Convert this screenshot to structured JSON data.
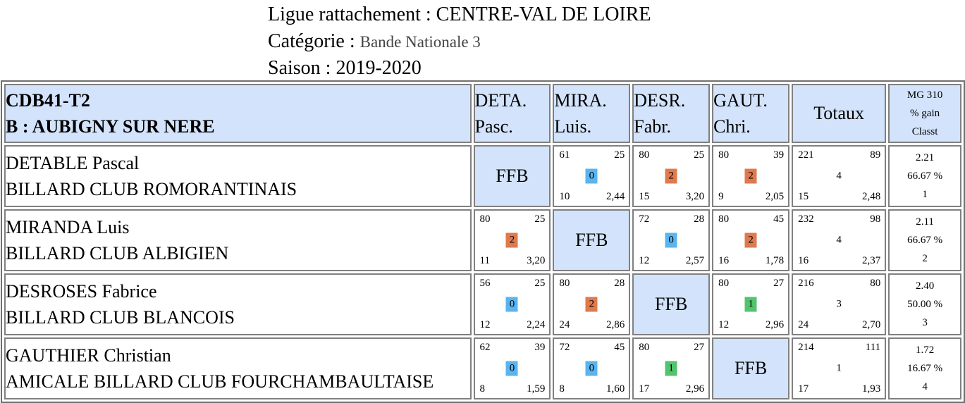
{
  "header": {
    "ligue_label": "Ligue rattachement : ",
    "ligue_value": "CENTRE-VAL DE LOIRE",
    "categorie_label": "Catégorie : ",
    "categorie_value": "Bande Nationale 3",
    "saison_label": "Saison : ",
    "saison_value": "2019-2020"
  },
  "colors": {
    "header_bg": "#d2e3fb",
    "badge_0": "#5ab4ee",
    "badge_1": "#52c46e",
    "badge_2": "#de7a4e",
    "border": "#808080"
  },
  "table": {
    "team_code": "CDB41-T2",
    "team_name": "B : AUBIGNY SUR NERE",
    "player_cols": [
      {
        "l1": "DETA.",
        "l2": "Pasc."
      },
      {
        "l1": "MIRA.",
        "l2": "Luis."
      },
      {
        "l1": "DESR.",
        "l2": "Fabr."
      },
      {
        "l1": "GAUT.",
        "l2": "Chri."
      }
    ],
    "totals_label": "Totaux",
    "mg_l1": "MG 310",
    "mg_l2": "% gain",
    "mg_l3": "Classt",
    "ffb": "FFB",
    "rows": [
      {
        "name": "DETABLE Pascal",
        "club": "BILLARD CLUB ROMORANTINAIS",
        "cells": [
          null,
          {
            "tl": "61",
            "tr": "25",
            "badge": "0",
            "bl": "10",
            "br": "2,44"
          },
          {
            "tl": "80",
            "tr": "25",
            "badge": "2",
            "bl": "15",
            "br": "3,20"
          },
          {
            "tl": "80",
            "tr": "39",
            "badge": "2",
            "bl": "9",
            "br": "2,05"
          }
        ],
        "totals": {
          "tl": "221",
          "tr": "89",
          "mid": "4",
          "bl": "15",
          "br": "2,48"
        },
        "stats": {
          "mg": "2.21",
          "gain": "66.67 %",
          "classt": "1"
        }
      },
      {
        "name": "MIRANDA Luis",
        "club": "BILLARD CLUB ALBIGIEN",
        "cells": [
          {
            "tl": "80",
            "tr": "25",
            "badge": "2",
            "bl": "11",
            "br": "3,20"
          },
          null,
          {
            "tl": "72",
            "tr": "28",
            "badge": "0",
            "bl": "12",
            "br": "2,57"
          },
          {
            "tl": "80",
            "tr": "45",
            "badge": "2",
            "bl": "16",
            "br": "1,78"
          }
        ],
        "totals": {
          "tl": "232",
          "tr": "98",
          "mid": "4",
          "bl": "16",
          "br": "2,37"
        },
        "stats": {
          "mg": "2.11",
          "gain": "66.67 %",
          "classt": "2"
        }
      },
      {
        "name": "DESROSES Fabrice",
        "club": "BILLARD CLUB BLANCOIS",
        "cells": [
          {
            "tl": "56",
            "tr": "25",
            "badge": "0",
            "bl": "12",
            "br": "2,24"
          },
          {
            "tl": "80",
            "tr": "28",
            "badge": "2",
            "bl": "24",
            "br": "2,86"
          },
          null,
          {
            "tl": "80",
            "tr": "27",
            "badge": "1",
            "bl": "12",
            "br": "2,96"
          }
        ],
        "totals": {
          "tl": "216",
          "tr": "80",
          "mid": "3",
          "bl": "24",
          "br": "2,70"
        },
        "stats": {
          "mg": "2.40",
          "gain": "50.00 %",
          "classt": "3"
        }
      },
      {
        "name": "GAUTHIER Christian",
        "club": "AMICALE BILLARD CLUB FOURCHAMBAULTAISE",
        "cells": [
          {
            "tl": "62",
            "tr": "39",
            "badge": "0",
            "bl": "8",
            "br": "1,59"
          },
          {
            "tl": "72",
            "tr": "45",
            "badge": "0",
            "bl": "8",
            "br": "1,60"
          },
          {
            "tl": "80",
            "tr": "27",
            "badge": "1",
            "bl": "17",
            "br": "2,96"
          },
          null
        ],
        "totals": {
          "tl": "214",
          "tr": "111",
          "mid": "1",
          "bl": "17",
          "br": "1,93"
        },
        "stats": {
          "mg": "1.72",
          "gain": "16.67 %",
          "classt": "4"
        }
      }
    ]
  }
}
